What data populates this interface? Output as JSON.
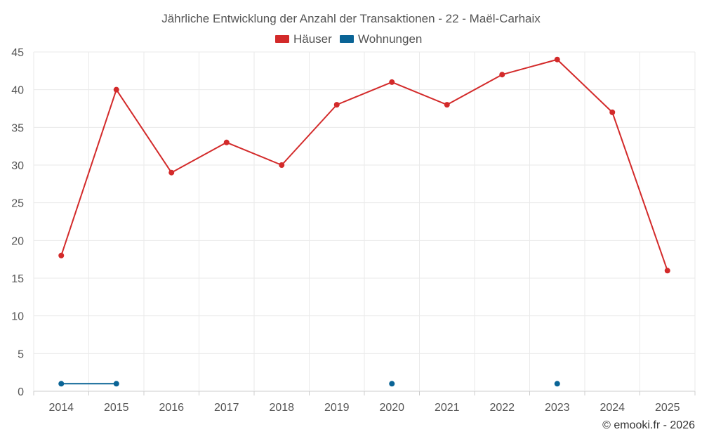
{
  "chart_data": {
    "type": "line",
    "title": "Jährliche Entwicklung der Anzahl der Transaktionen - 22 - Maël-Carhaix",
    "categories": [
      "2014",
      "2015",
      "2016",
      "2017",
      "2018",
      "2019",
      "2020",
      "2021",
      "2022",
      "2023",
      "2024",
      "2025"
    ],
    "series": [
      {
        "name": "Häuser",
        "color": "#d32a2a",
        "values": [
          18,
          40,
          29,
          33,
          30,
          38,
          41,
          38,
          42,
          44,
          37,
          16
        ]
      },
      {
        "name": "Wohnungen",
        "color": "#0a6496",
        "values": [
          1,
          1,
          null,
          null,
          null,
          null,
          1,
          null,
          null,
          1,
          null,
          null
        ]
      }
    ],
    "ylim": [
      0,
      45
    ],
    "yticks": [
      "0",
      "5",
      "10",
      "15",
      "20",
      "25",
      "30",
      "35",
      "40",
      "45"
    ],
    "xlabel": "",
    "ylabel": "",
    "grid": true,
    "legend_position": "top-center"
  },
  "credit": "© emooki.fr - 2026"
}
